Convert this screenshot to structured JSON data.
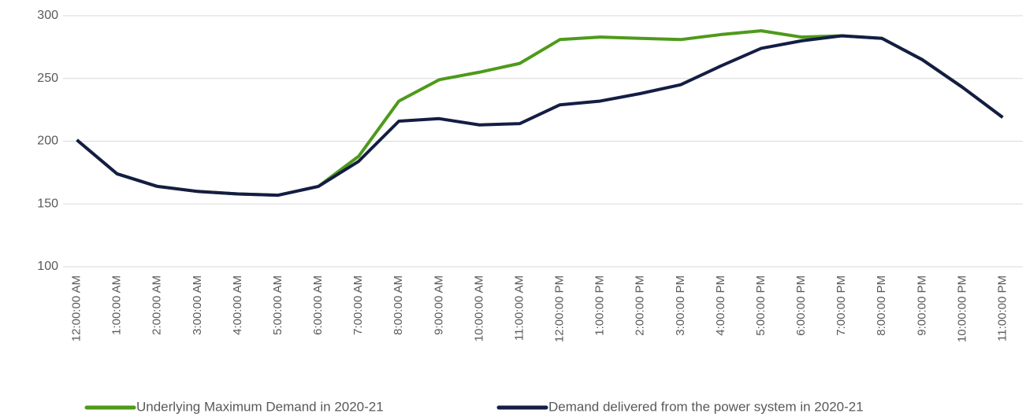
{
  "chart_data": {
    "type": "line",
    "categories": [
      "12:00:00 AM",
      "1:00:00 AM",
      "2:00:00 AM",
      "3:00:00 AM",
      "4:00:00 AM",
      "5:00:00 AM",
      "6:00:00 AM",
      "7:00:00 AM",
      "8:00:00 AM",
      "9:00:00 AM",
      "10:00:00 AM",
      "11:00:00 AM",
      "12:00:00 PM",
      "1:00:00 PM",
      "2:00:00 PM",
      "3:00:00 PM",
      "4:00:00 PM",
      "5:00:00 PM",
      "6:00:00 PM",
      "7:00:00 PM",
      "8:00:00 PM",
      "9:00:00 PM",
      "10:00:00 PM",
      "11:00:00 PM"
    ],
    "series": [
      {
        "name": "Underlying Maximum Demand in 2020-21",
        "color": "#4e9a1a",
        "values": [
          201,
          174,
          164,
          160,
          158,
          157,
          164,
          188,
          232,
          249,
          255,
          262,
          281,
          283,
          282,
          281,
          285,
          288,
          283,
          284,
          282,
          265,
          243,
          219
        ]
      },
      {
        "name": "Demand delivered from the power system in 2020-21",
        "color": "#141d44",
        "values": [
          201,
          174,
          164,
          160,
          158,
          157,
          164,
          184,
          216,
          218,
          213,
          214,
          229,
          232,
          238,
          245,
          260,
          274,
          280,
          284,
          282,
          265,
          243,
          219
        ]
      }
    ],
    "ylim": [
      100,
      300
    ],
    "yticks": [
      100,
      150,
      200,
      250,
      300
    ],
    "grid": true,
    "legend": "bottom"
  }
}
